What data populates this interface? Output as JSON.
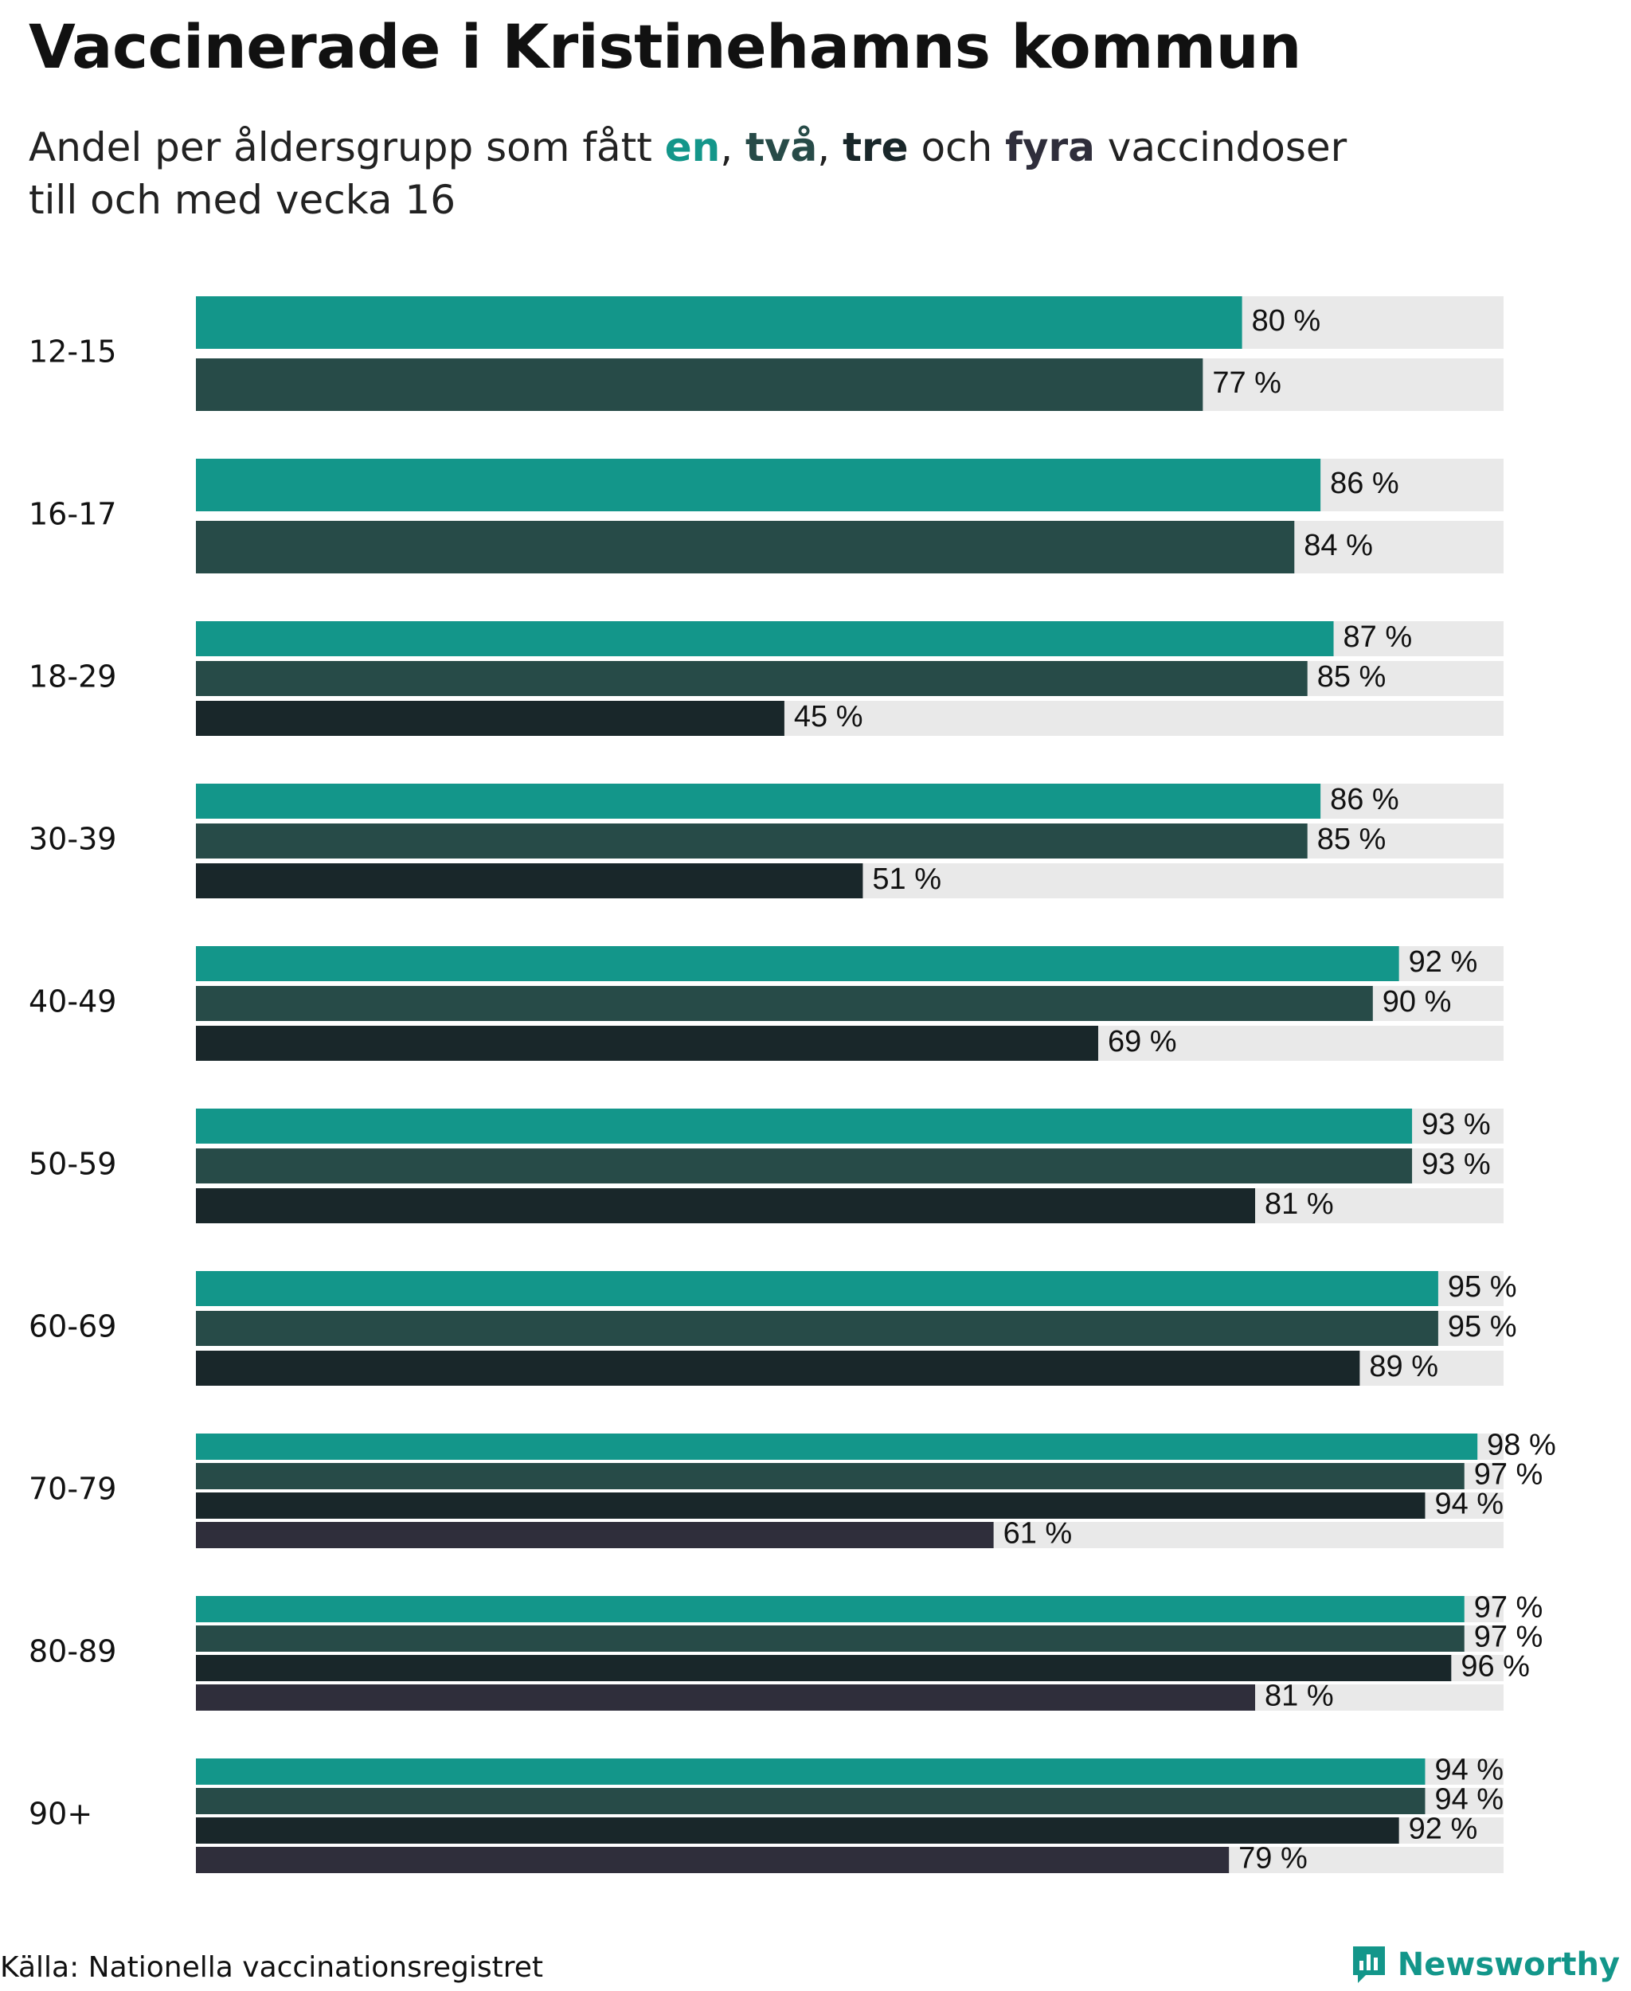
{
  "title": "Vaccinerade i Kristinehamns kommun",
  "subtitle": {
    "prefix": "Andel per åldersgrupp som fått ",
    "k1": "en",
    "sep1": ", ",
    "k2": "två",
    "sep2": ", ",
    "k3": "tre",
    "mid": " och ",
    "k4": "fyra",
    "suffix": " vaccindoser",
    "line2": "till och med vecka 16"
  },
  "colors": {
    "dose1": "#13968a",
    "dose2": "#274b48",
    "dose3": "#19272a",
    "dose4": "#2f2e3b",
    "track": "#e9e9e9"
  },
  "chart_data": {
    "type": "bar",
    "orientation": "horizontal",
    "title": "Vaccinerade i Kristinehamns kommun",
    "xlim": [
      0,
      100
    ],
    "value_suffix": " %",
    "series_names": [
      "en",
      "två",
      "tre",
      "fyra"
    ],
    "groups": [
      {
        "label": "12-15",
        "values": [
          80,
          77
        ]
      },
      {
        "label": "16-17",
        "values": [
          86,
          84
        ]
      },
      {
        "label": "18-29",
        "values": [
          87,
          85,
          45
        ]
      },
      {
        "label": "30-39",
        "values": [
          86,
          85,
          51
        ]
      },
      {
        "label": "40-49",
        "values": [
          92,
          90,
          69
        ]
      },
      {
        "label": "50-59",
        "values": [
          93,
          93,
          81
        ]
      },
      {
        "label": "60-69",
        "values": [
          95,
          95,
          89
        ]
      },
      {
        "label": "70-79",
        "values": [
          98,
          97,
          94,
          61
        ]
      },
      {
        "label": "80-89",
        "values": [
          97,
          97,
          96,
          81
        ]
      },
      {
        "label": "90+",
        "values": [
          94,
          94,
          92,
          79
        ]
      }
    ]
  },
  "footer": {
    "source": "Källa: Nationella vaccinationsregistret",
    "brand": "Newsworthy",
    "brand_icon": "newsworthy-logo-icon"
  }
}
